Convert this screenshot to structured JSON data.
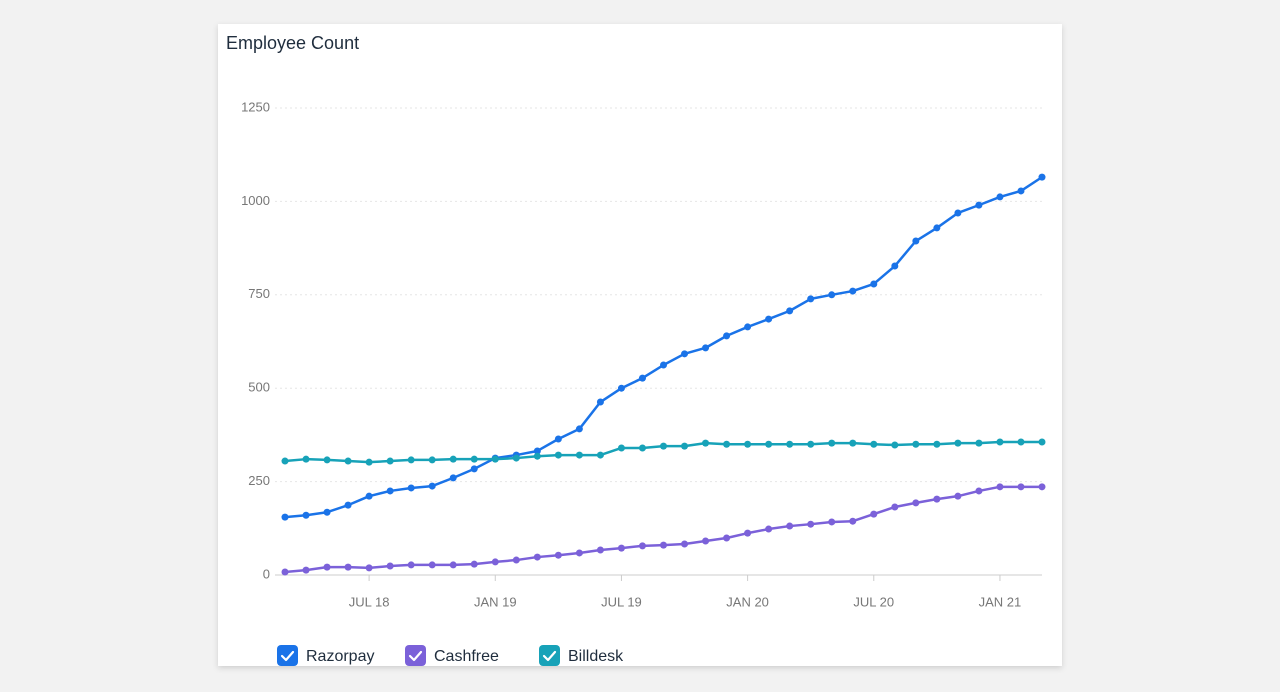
{
  "chart_data": {
    "type": "line",
    "title": "Employee Count",
    "categories": [
      null,
      null,
      null,
      null,
      "JUL 18",
      null,
      null,
      null,
      null,
      null,
      "JAN 19",
      null,
      null,
      null,
      null,
      null,
      "JUL 19",
      null,
      null,
      null,
      null,
      null,
      "JAN 20",
      null,
      null,
      null,
      null,
      null,
      "JUL 20",
      null,
      null,
      null,
      null,
      null,
      "JAN 21",
      null,
      null
    ],
    "series": [
      {
        "name": "Razorpay",
        "color": "#1a73e8",
        "values": [
          155,
          160,
          168,
          187,
          211,
          225,
          233,
          238,
          260,
          284,
          313,
          321,
          332,
          364,
          391,
          463,
          500,
          527,
          562,
          592,
          608,
          640,
          664,
          685,
          707,
          739,
          750,
          760,
          779,
          827,
          894,
          929,
          969,
          990,
          1012,
          1028,
          1065
        ]
      },
      {
        "name": "Cashfree",
        "color": "#7b61d9",
        "values": [
          8,
          13,
          21,
          21,
          19,
          24,
          27,
          27,
          27,
          29,
          35,
          40,
          48,
          53,
          59,
          67,
          72,
          78,
          80,
          83,
          91,
          99,
          112,
          123,
          131,
          136,
          142,
          144,
          163,
          182,
          193,
          203,
          211,
          225,
          236,
          236,
          236
        ]
      },
      {
        "name": "Billdesk",
        "color": "#17a2b8",
        "values": [
          305,
          310,
          308,
          305,
          302,
          305,
          308,
          308,
          310,
          310,
          310,
          313,
          318,
          321,
          321,
          321,
          340,
          340,
          345,
          345,
          353,
          350,
          350,
          350,
          350,
          350,
          353,
          353,
          350,
          348,
          350,
          350,
          353,
          353,
          356,
          356,
          356
        ]
      }
    ],
    "ylim": [
      0,
      1250
    ],
    "yticks": [
      0,
      250,
      500,
      750,
      1000,
      1250
    ],
    "grid": true
  }
}
